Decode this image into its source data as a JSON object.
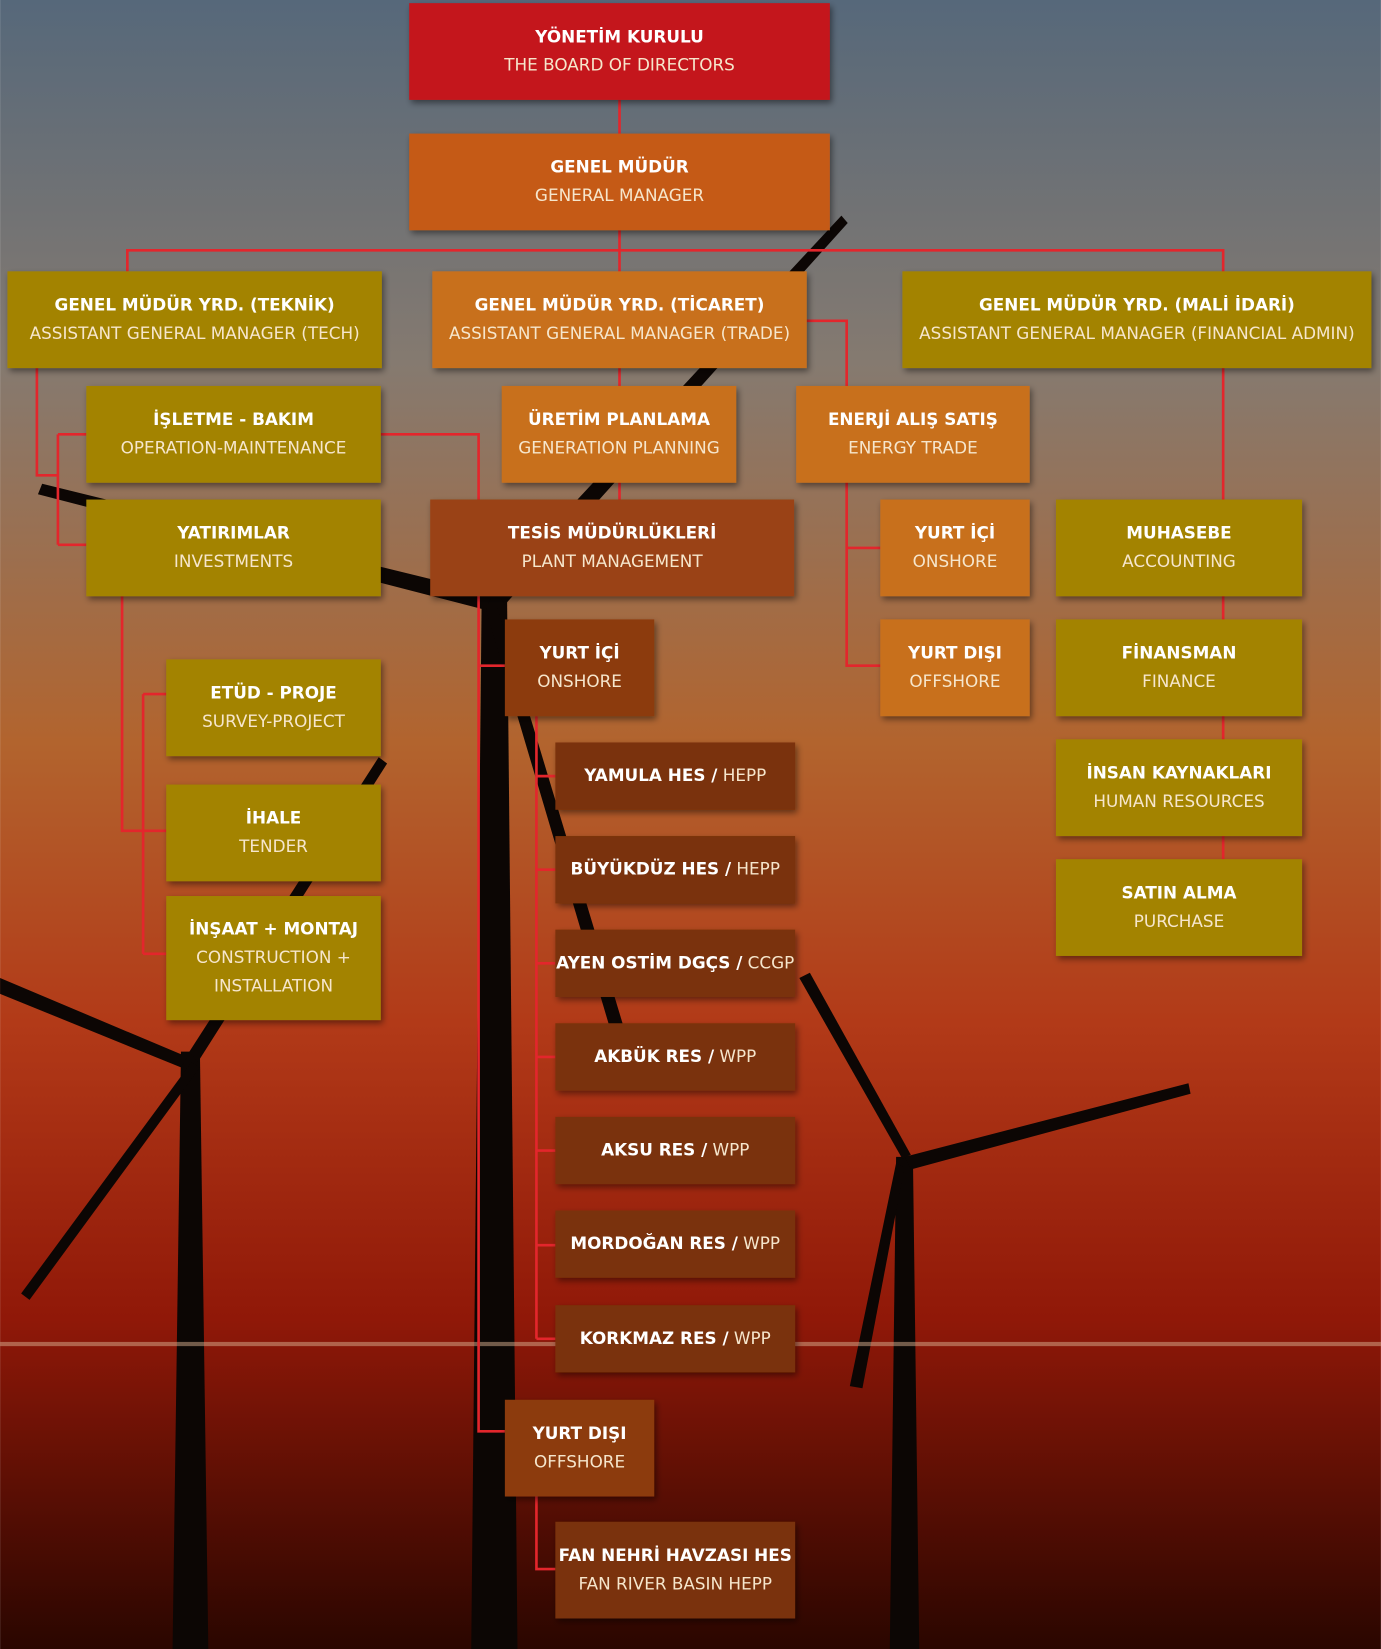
{
  "nodes": [
    {
      "tr": "YÖNETİM KURULU",
      "en": "THE BOARD OF DIRECTORS"
    },
    {
      "tr": "GENEL MÜDÜR",
      "en": "GENERAL MANAGER"
    },
    {
      "tr": "GENEL MÜDÜR YRD. (TEKNİK)",
      "en": "ASSISTANT GENERAL MANAGER (TECH)"
    },
    {
      "tr": "GENEL MÜDÜR YRD. (TİCARET)",
      "en": "ASSISTANT GENERAL MANAGER (TRADE)"
    },
    {
      "tr": "GENEL MÜDÜR YRD. (MALİ İDARİ)",
      "en": "ASSISTANT GENERAL MANAGER (FINANCIAL ADMIN)"
    },
    {
      "tr": "İŞLETME - BAKIM",
      "en": "OPERATION-MAINTENANCE"
    },
    {
      "tr": "ÜRETİM PLANLAMA",
      "en": "GENERATION PLANNING"
    },
    {
      "tr": "ENERJİ ALIŞ SATIŞ",
      "en": "ENERGY TRADE"
    },
    {
      "tr": "YATIRIMLAR",
      "en": "INVESTMENTS"
    },
    {
      "tr": "TESİS MÜDÜRLÜKLERİ",
      "en": "PLANT MANAGEMENT"
    },
    {
      "tr": "YURT İÇİ",
      "en": "ONSHORE"
    },
    {
      "tr": "MUHASEBE",
      "en": "ACCOUNTING"
    },
    {
      "tr": "YURT İÇİ",
      "en": "ONSHORE"
    },
    {
      "tr": "YURT DIŞI",
      "en": "OFFSHORE"
    },
    {
      "tr": "FİNANSMAN",
      "en": "FINANCE"
    },
    {
      "tr": "ETÜD - PROJE",
      "en": "SURVEY-PROJECT"
    },
    {
      "tr": "İNSAN KAYNAKLARI",
      "en": "HUMAN RESOURCES"
    },
    {
      "tr": "YAMULA HES /",
      "en": "HEPP"
    },
    {
      "tr": "İHALE",
      "en": "TENDER"
    },
    {
      "tr": "BÜYÜKDÜZ HES /",
      "en": "HEPP"
    },
    {
      "tr": "SATIN ALMA",
      "en": "PURCHASE"
    },
    {
      "tr": "İNŞAAT + MONTAJ",
      "en": [
        "CONSTRUCTION +",
        "INSTALLATION"
      ]
    },
    {
      "tr": "AYEN OSTİM  DGÇS /",
      "en": "CCGP"
    },
    {
      "tr": "AKBÜK RES /",
      "en": "WPP"
    },
    {
      "tr": "AKSU RES /",
      "en": "WPP"
    },
    {
      "tr": "MORDOĞAN RES /",
      "en": "WPP"
    },
    {
      "tr": "KORKMAZ RES /",
      "en": "WPP"
    },
    {
      "tr": "YURT DIŞI",
      "en": "OFFSHORE"
    },
    {
      "tr": "FAN NEHRİ HAVZASI HES",
      "en": "FAN RIVER BASIN HEPP"
    }
  ]
}
